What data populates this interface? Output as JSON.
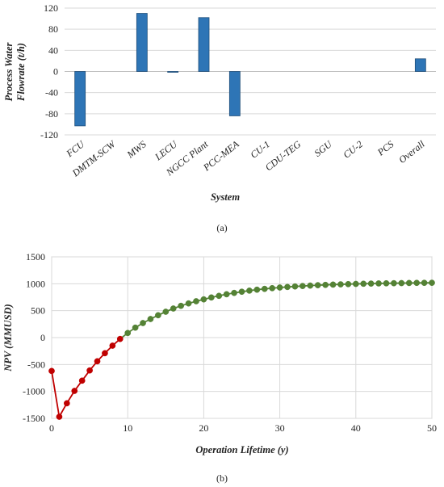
{
  "chart_data": [
    {
      "type": "bar",
      "categories": [
        "FCU",
        "DMTM-SCW",
        "MWS",
        "LECU",
        "NGCC Plant",
        "PCC-MEA",
        "CU-1",
        "CDU-TEG",
        "SGU",
        "CU-2",
        "PCS",
        "Overall"
      ],
      "values": [
        -103,
        0,
        110,
        -1,
        102,
        -84,
        0,
        0,
        0,
        0,
        0,
        24
      ],
      "xlabel": "System",
      "ylabel": [
        "Process Water",
        "Flowrate (t/h)"
      ],
      "ylim": [
        -120,
        120
      ],
      "yticks": [
        120,
        80,
        40,
        0,
        -40,
        -80,
        -120
      ],
      "bar_color": "#2e75b6",
      "caption": "(a)"
    },
    {
      "type": "line",
      "xlabel": "Operation Lifetime (y)",
      "ylabel": "NPV (MMUSD)",
      "xlim": [
        0,
        50
      ],
      "ylim": [
        -1500,
        1500
      ],
      "xticks": [
        0,
        10,
        20,
        30,
        40,
        50
      ],
      "yticks": [
        1500,
        1000,
        500,
        0,
        -500,
        -1000,
        -1500
      ],
      "grid": true,
      "series": [
        {
          "color": "#c00000",
          "x": [
            0,
            1,
            2,
            3,
            4,
            5,
            6,
            7,
            8,
            9
          ],
          "y": [
            -620,
            -1470,
            -1220,
            -990,
            -800,
            -610,
            -440,
            -290,
            -150,
            -25
          ]
        },
        {
          "color": "#548235",
          "x": [
            10,
            11,
            12,
            13,
            14,
            15,
            16,
            17,
            18,
            19,
            20,
            21,
            22,
            23,
            24,
            25,
            26,
            27,
            28,
            29,
            30,
            31,
            32,
            33,
            34,
            35,
            36,
            37,
            38,
            39,
            40,
            41,
            42,
            43,
            44,
            45,
            46,
            47,
            48,
            49,
            50
          ],
          "y": [
            85,
            185,
            270,
            345,
            415,
            480,
            540,
            590,
            635,
            675,
            710,
            745,
            775,
            805,
            830,
            852,
            872,
            890,
            905,
            918,
            930,
            940,
            950,
            958,
            966,
            973,
            979,
            984,
            989,
            993,
            997,
            1000,
            1003,
            1006,
            1008,
            1010,
            1012,
            1014,
            1016,
            1017,
            1018
          ]
        }
      ],
      "caption": "(b)"
    }
  ]
}
